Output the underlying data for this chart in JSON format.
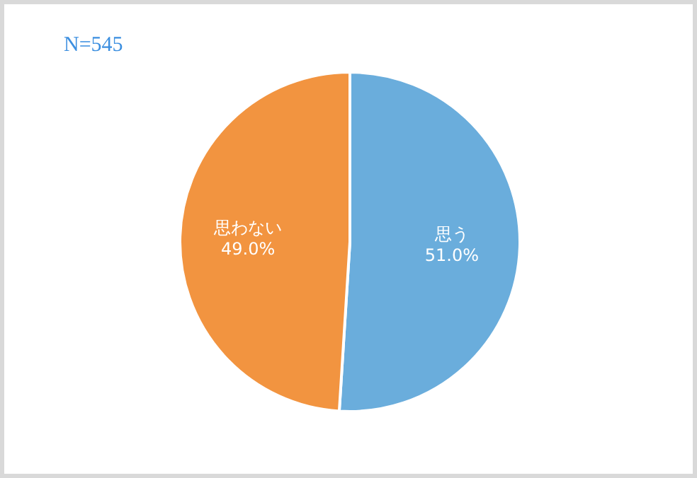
{
  "chart_data": {
    "type": "pie",
    "categories": [
      "思う",
      "思わない"
    ],
    "values": [
      51.0,
      49.0
    ],
    "colors": [
      "#6aaddc",
      "#f29440"
    ],
    "value_labels": [
      "51.0%",
      "49.0%"
    ],
    "annotations": [
      "N=545"
    ],
    "legend": false
  }
}
